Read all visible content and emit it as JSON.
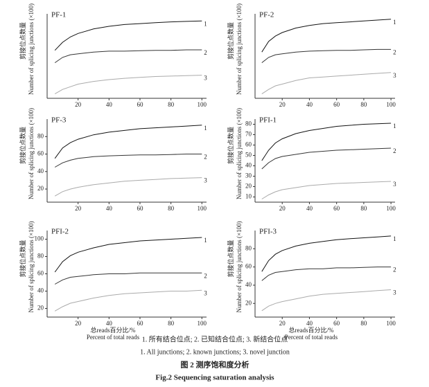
{
  "chart_data": [
    {
      "type": "line",
      "title": "PF-1",
      "y_label_cn": "剪接位点数量",
      "ylabel": "Number of splicing junctions (×100)",
      "x": [
        5,
        10,
        15,
        20,
        30,
        40,
        50,
        60,
        70,
        80,
        90,
        100
      ],
      "xlim": [
        0,
        103
      ],
      "xticks": [
        20,
        40,
        60,
        80,
        100
      ],
      "ylim": [
        5,
        100
      ],
      "series": [
        {
          "name": "1",
          "color": "#111",
          "values": [
            59,
            68,
            74,
            78,
            83,
            86,
            88,
            89,
            90,
            91,
            91.5,
            92
          ]
        },
        {
          "name": "2",
          "color": "#333",
          "values": [
            45,
            51,
            54,
            55,
            57,
            58,
            58,
            58.5,
            59,
            59,
            59.5,
            59.5
          ]
        },
        {
          "name": "3",
          "color": "#aaa",
          "values": [
            10,
            15,
            18,
            21,
            24,
            26,
            27.5,
            28.5,
            29.5,
            30,
            30.5,
            31
          ]
        }
      ]
    },
    {
      "type": "line",
      "title": "PF-2",
      "y_label_cn": "剪接位点数量",
      "ylabel": "Number of splicing junctions (×100)",
      "x": [
        5,
        10,
        15,
        20,
        30,
        40,
        50,
        60,
        70,
        80,
        90,
        100
      ],
      "xlim": [
        0,
        103
      ],
      "xticks": [
        20,
        40,
        60,
        80,
        100
      ],
      "ylim": [
        5,
        100
      ],
      "series": [
        {
          "name": "1",
          "color": "#111",
          "values": [
            57,
            69,
            75,
            79,
            84,
            87,
            89,
            90,
            91,
            92,
            93,
            94
          ]
        },
        {
          "name": "2",
          "color": "#333",
          "values": [
            45,
            51,
            54,
            55,
            57,
            58,
            58.5,
            59,
            59,
            59.5,
            60,
            60
          ]
        },
        {
          "name": "3",
          "color": "#aaa",
          "values": [
            10,
            15,
            19,
            21,
            25,
            28,
            29,
            30,
            31,
            32,
            33,
            34
          ]
        }
      ]
    },
    {
      "type": "line",
      "title": "PF-3",
      "y_label_cn": "剪接位点数量",
      "ylabel": "Number of splicing junctions (×100)",
      "x": [
        5,
        10,
        15,
        20,
        30,
        40,
        50,
        60,
        70,
        80,
        90,
        100
      ],
      "xlim": [
        0,
        103
      ],
      "xticks": [
        20,
        40,
        60,
        80,
        100
      ],
      "ylim": [
        5,
        100
      ],
      "yticks": [
        20,
        40,
        60,
        80
      ],
      "series": [
        {
          "name": "1",
          "color": "#111",
          "values": [
            55,
            67,
            73,
            77,
            82,
            85,
            87,
            89,
            90,
            91,
            92,
            93
          ]
        },
        {
          "name": "2",
          "color": "#333",
          "values": [
            45,
            50,
            53,
            55,
            57,
            58,
            58.5,
            59,
            59,
            59.5,
            60,
            60
          ]
        },
        {
          "name": "3",
          "color": "#aaa",
          "values": [
            12,
            17,
            20,
            22,
            25,
            27,
            29,
            30,
            31,
            32,
            32.5,
            33
          ]
        }
      ]
    },
    {
      "type": "line",
      "title": "PFI-1",
      "y_label_cn": "剪接位点数量",
      "ylabel": "Number of splicing junctions (×100)",
      "x": [
        5,
        10,
        15,
        20,
        30,
        40,
        50,
        60,
        70,
        80,
        90,
        100
      ],
      "xlim": [
        0,
        103
      ],
      "xticks": [
        20,
        40,
        60,
        80,
        100
      ],
      "ylim": [
        5,
        85
      ],
      "yticks": [
        10,
        20,
        30,
        40,
        50,
        60,
        70,
        80
      ],
      "series": [
        {
          "name": "1",
          "color": "#111",
          "values": [
            45,
            55,
            62,
            66,
            71,
            74,
            76,
            78,
            79,
            80,
            80.5,
            81
          ]
        },
        {
          "name": "2",
          "color": "#333",
          "values": [
            37,
            43,
            47,
            49,
            51,
            53,
            54,
            55,
            55.5,
            56,
            56.5,
            57
          ]
        },
        {
          "name": "3",
          "color": "#aaa",
          "values": [
            8,
            12,
            15,
            17,
            19,
            21,
            22,
            23,
            23.5,
            24,
            24.5,
            25
          ]
        }
      ]
    },
    {
      "type": "line",
      "title": "PFI-2",
      "y_label_cn": "剪接位点数量",
      "ylabel": "Number of splicing junctions (×100)",
      "xlabel_cn": "总reads百分比/%",
      "xlabel": "Percent of total reads",
      "x": [
        5,
        10,
        15,
        20,
        30,
        40,
        50,
        60,
        70,
        80,
        90,
        100
      ],
      "xlim": [
        0,
        103
      ],
      "xticks": [
        20,
        40,
        60,
        80,
        100
      ],
      "ylim": [
        10,
        110
      ],
      "yticks": [
        20,
        40,
        60,
        80,
        100
      ],
      "series": [
        {
          "name": "1",
          "color": "#111",
          "values": [
            62,
            74,
            81,
            85,
            90,
            94,
            96,
            98,
            99,
            100,
            101,
            102
          ]
        },
        {
          "name": "2",
          "color": "#333",
          "values": [
            48,
            53,
            56,
            57,
            59,
            60,
            60,
            61,
            61,
            61,
            61,
            61
          ]
        },
        {
          "name": "3",
          "color": "#aaa",
          "values": [
            17,
            22,
            26,
            28,
            32,
            35,
            37,
            38,
            39,
            40,
            40,
            41
          ]
        }
      ]
    },
    {
      "type": "line",
      "title": "PFI-3",
      "y_label_cn": "剪接位点数量",
      "ylabel": "Number of splicing junctions (×100)",
      "xlabel_cn": "总reads百分比/%",
      "xlabel": "Percent of total reads",
      "x": [
        5,
        10,
        15,
        20,
        30,
        40,
        50,
        60,
        70,
        80,
        90,
        100
      ],
      "xlim": [
        0,
        103
      ],
      "xticks": [
        20,
        40,
        60,
        80,
        100
      ],
      "ylim": [
        5,
        100
      ],
      "yticks": [
        20,
        40,
        60,
        80
      ],
      "series": [
        {
          "name": "1",
          "color": "#111",
          "values": [
            55,
            67,
            74,
            78,
            83,
            86,
            88,
            90,
            91,
            92,
            93,
            94
          ]
        },
        {
          "name": "2",
          "color": "#333",
          "values": [
            45,
            51,
            54,
            55,
            57,
            58,
            58,
            59,
            59,
            59.5,
            60,
            60
          ]
        },
        {
          "name": "3",
          "color": "#aaa",
          "values": [
            12,
            17,
            20,
            22,
            25,
            28,
            30,
            31,
            32,
            33,
            34,
            35
          ]
        }
      ]
    }
  ],
  "caption": {
    "legend_cn": "1. 所有结合位点; 2. 已知结合位点; 3. 新结合位点",
    "legend_en": "1. All junctions; 2. known junctions; 3. novel junction",
    "figure_cn": "图 2   测序饱和度分析",
    "figure_en": "Fig.2   Sequencing saturation analysis"
  }
}
